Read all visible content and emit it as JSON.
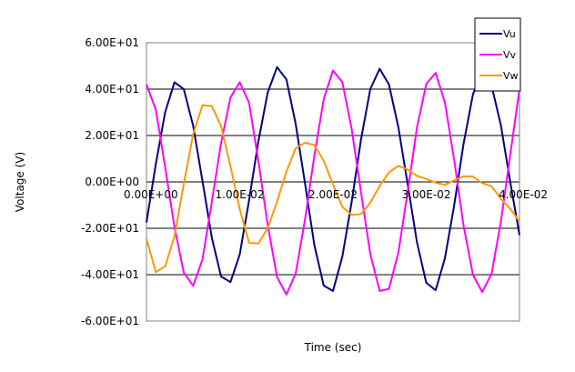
{
  "chart_data": {
    "type": "line",
    "title": "",
    "xlabel": "Time (sec)",
    "ylabel": "Voltage (V)",
    "xlim": [
      0,
      0.04
    ],
    "ylim": [
      -60,
      60
    ],
    "x_ticks": [
      0,
      0.01,
      0.02,
      0.03,
      0.04
    ],
    "x_tick_labels": [
      "0.00E+00",
      "1.00E-02",
      "2.00E-02",
      "3.00E-02",
      "4.00E-02"
    ],
    "y_ticks": [
      60,
      40,
      20,
      0,
      -20,
      -40,
      -60
    ],
    "y_tick_labels": [
      "6.00E+01",
      "4.00E+01",
      "2.00E+01",
      "0.00E+00",
      "-2.00E+01",
      "-4.00E+01",
      "-6.00E+01"
    ],
    "grid": "horizontal",
    "legend": "top-right",
    "series": [
      {
        "name": "Vu",
        "color": "#000080",
        "x": [
          0,
          0.001,
          0.002,
          0.003,
          0.004,
          0.005,
          0.006,
          0.007,
          0.008,
          0.009,
          0.01,
          0.011,
          0.012,
          0.013,
          0.014,
          0.015,
          0.016,
          0.017,
          0.018,
          0.019,
          0.02,
          0.021,
          0.022,
          0.023,
          0.024,
          0.025,
          0.026,
          0.027,
          0.028,
          0.029,
          0.03,
          0.031,
          0.032,
          0.033,
          0.034,
          0.035,
          0.036,
          0.037,
          0.038,
          0.039,
          0.04
        ],
        "values": [
          -17.5,
          7.8,
          30.0,
          43.0,
          40.0,
          24.2,
          0.5,
          -24.0,
          -40.8,
          -43.2,
          -31.3,
          -7.8,
          17.5,
          38.6,
          49.5,
          44.2,
          25.0,
          -0.7,
          -27.2,
          -44.7,
          -47.0,
          -32.2,
          -8.7,
          18.3,
          40.0,
          48.8,
          42.0,
          23.7,
          -0.8,
          -26.0,
          -43.5,
          -46.7,
          -33.0,
          -9.9,
          16.4,
          37.7,
          48.0,
          41.5,
          24.5,
          0,
          -22.9
        ]
      },
      {
        "name": "Vv",
        "color": "#ff00ff",
        "x": [
          0,
          0.001,
          0.002,
          0.003,
          0.004,
          0.005,
          0.006,
          0.007,
          0.008,
          0.009,
          0.01,
          0.011,
          0.012,
          0.013,
          0.014,
          0.015,
          0.016,
          0.017,
          0.018,
          0.019,
          0.02,
          0.021,
          0.022,
          0.023,
          0.024,
          0.025,
          0.026,
          0.027,
          0.028,
          0.029,
          0.03,
          0.031,
          0.032,
          0.033,
          0.034,
          0.035,
          0.036,
          0.037,
          0.038,
          0.039,
          0.04
        ],
        "values": [
          42.0,
          31.1,
          6.4,
          -19.5,
          -39.1,
          -44.8,
          -33.5,
          -8.7,
          16.8,
          36.4,
          43.0,
          34.1,
          9.0,
          -18.6,
          -41.0,
          -48.6,
          -39.5,
          -16.2,
          11.3,
          35.6,
          48.0,
          43.0,
          22.9,
          -4.4,
          -31.1,
          -47.0,
          -46.1,
          -30.6,
          -4.6,
          23.4,
          42.2,
          47.0,
          34.3,
          9.2,
          -18.8,
          -40.0,
          -47.5,
          -39.6,
          -17.3,
          11.6,
          40.0
        ]
      },
      {
        "name": "Vw",
        "color": "#ff9900",
        "x": [
          0,
          0.001,
          0.002,
          0.003,
          0.004,
          0.005,
          0.006,
          0.007,
          0.008,
          0.009,
          0.01,
          0.011,
          0.012,
          0.013,
          0.014,
          0.015,
          0.016,
          0.017,
          0.018,
          0.019,
          0.02,
          0.021,
          0.022,
          0.023,
          0.024,
          0.025,
          0.026,
          0.027,
          0.028,
          0.029,
          0.03,
          0.031,
          0.032,
          0.033,
          0.034,
          0.035,
          0.036,
          0.037,
          0.038,
          0.039,
          0.04
        ],
        "values": [
          -24.5,
          -38.9,
          -36.4,
          -23.5,
          -0.9,
          20.6,
          33.0,
          32.7,
          24.0,
          6.8,
          -11.7,
          -26.3,
          -26.5,
          -20.0,
          -8.5,
          4.4,
          14.5,
          16.9,
          15.9,
          9.1,
          -1.0,
          -10.8,
          -14.2,
          -13.9,
          -8.9,
          -1.8,
          4.1,
          6.9,
          5.4,
          2.6,
          1.3,
          -0.3,
          -1.3,
          0.7,
          2.4,
          2.3,
          -0.5,
          -1.9,
          -7.2,
          -11.6,
          -17.1
        ]
      }
    ]
  }
}
